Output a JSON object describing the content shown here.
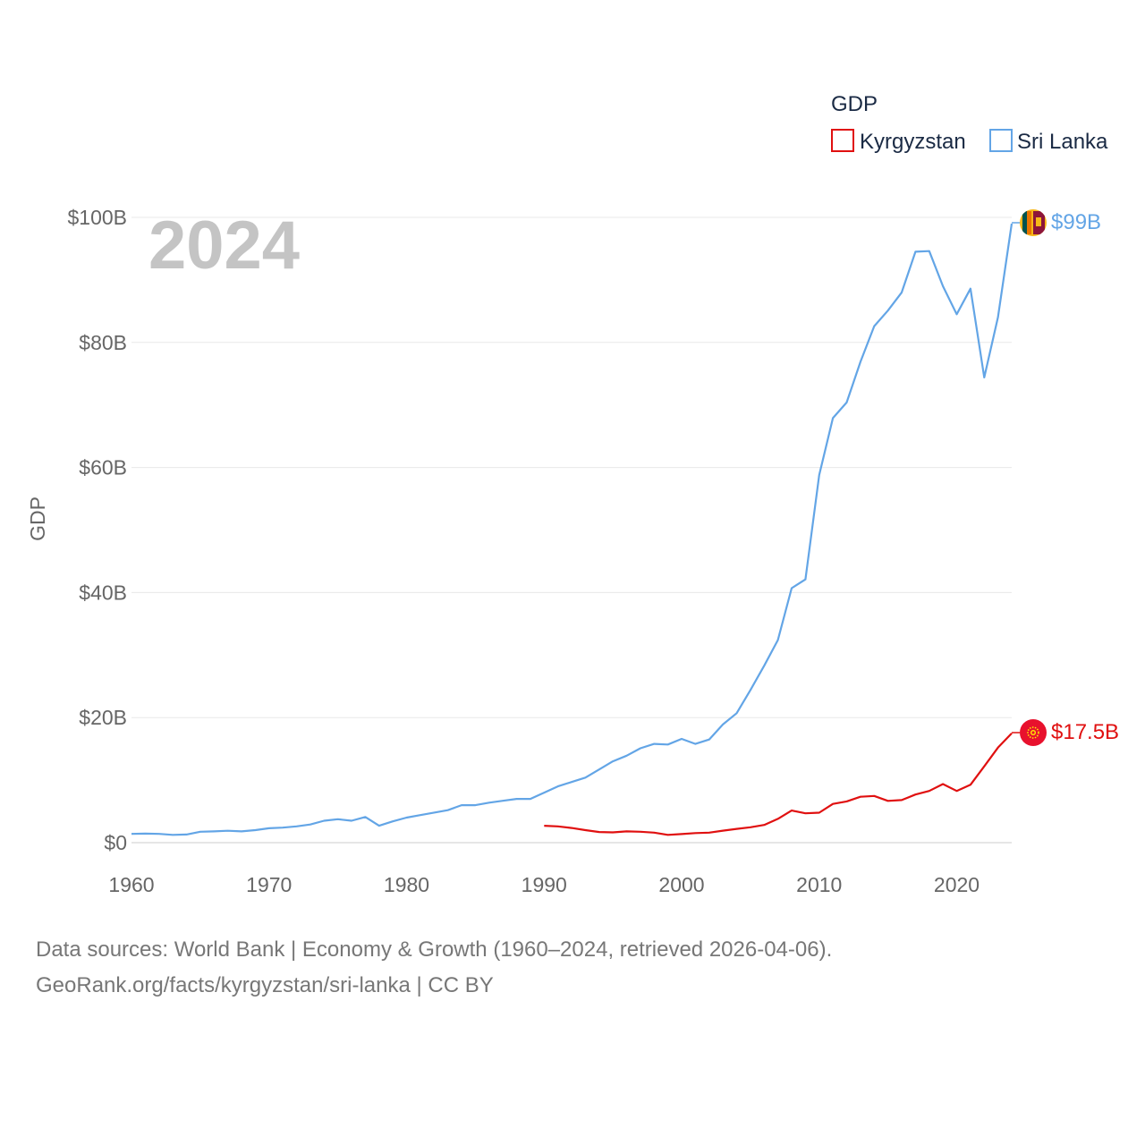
{
  "chart_data": {
    "type": "line",
    "year_label": "2024",
    "ylabel": "GDP",
    "xlim": [
      1960,
      2024
    ],
    "ylim": [
      0,
      100
    ],
    "x_ticks": [
      1960,
      1970,
      1980,
      1990,
      2000,
      2010,
      2020
    ],
    "x_tick_labels": [
      "1960",
      "1970",
      "1980",
      "1990",
      "2000",
      "2010",
      "2020"
    ],
    "y_ticks": [
      0,
      20,
      40,
      60,
      80,
      100
    ],
    "y_tick_labels": [
      "$0",
      "$20B",
      "$40B",
      "$60B",
      "$80B",
      "$100B"
    ],
    "legend": {
      "title": "GDP",
      "position": "top-right",
      "entries": [
        "Kyrgyzstan",
        "Sri Lanka"
      ]
    },
    "series": [
      {
        "name": "Sri Lanka",
        "color": "#63a5e6",
        "end_label": "$99B",
        "flag_icon": "sri-lanka-flag-icon",
        "points": [
          [
            1960,
            1.4
          ],
          [
            1961,
            1.45
          ],
          [
            1962,
            1.4
          ],
          [
            1963,
            1.25
          ],
          [
            1964,
            1.3
          ],
          [
            1965,
            1.75
          ],
          [
            1966,
            1.8
          ],
          [
            1967,
            1.9
          ],
          [
            1968,
            1.8
          ],
          [
            1969,
            2.0
          ],
          [
            1970,
            2.3
          ],
          [
            1971,
            2.4
          ],
          [
            1972,
            2.6
          ],
          [
            1973,
            2.9
          ],
          [
            1974,
            3.5
          ],
          [
            1975,
            3.75
          ],
          [
            1976,
            3.5
          ],
          [
            1977,
            4.1
          ],
          [
            1978,
            2.7
          ],
          [
            1979,
            3.4
          ],
          [
            1980,
            4.0
          ],
          [
            1981,
            4.4
          ],
          [
            1982,
            4.8
          ],
          [
            1983,
            5.2
          ],
          [
            1984,
            6.0
          ],
          [
            1985,
            6.0
          ],
          [
            1986,
            6.4
          ],
          [
            1987,
            6.7
          ],
          [
            1988,
            7.0
          ],
          [
            1989,
            7.0
          ],
          [
            1990,
            8.0
          ],
          [
            1991,
            9.0
          ],
          [
            1992,
            9.7
          ],
          [
            1993,
            10.4
          ],
          [
            1994,
            11.7
          ],
          [
            1995,
            13.0
          ],
          [
            1996,
            13.9
          ],
          [
            1997,
            15.1
          ],
          [
            1998,
            15.8
          ],
          [
            1999,
            15.7
          ],
          [
            2000,
            16.6
          ],
          [
            2001,
            15.8
          ],
          [
            2002,
            16.5
          ],
          [
            2003,
            18.9
          ],
          [
            2004,
            20.7
          ],
          [
            2005,
            24.4
          ],
          [
            2006,
            28.3
          ],
          [
            2007,
            32.4
          ],
          [
            2008,
            40.7
          ],
          [
            2009,
            42.1
          ],
          [
            2010,
            58.8
          ],
          [
            2011,
            67.9
          ],
          [
            2012,
            70.4
          ],
          [
            2013,
            76.9
          ],
          [
            2014,
            82.6
          ],
          [
            2015,
            85.1
          ],
          [
            2016,
            88.0
          ],
          [
            2017,
            94.5
          ],
          [
            2018,
            94.6
          ],
          [
            2019,
            89.0
          ],
          [
            2020,
            84.5
          ],
          [
            2021,
            88.6
          ],
          [
            2022,
            74.4
          ],
          [
            2023,
            84.0
          ],
          [
            2024,
            99.0
          ]
        ]
      },
      {
        "name": "Kyrgyzstan",
        "color": "#e01010",
        "end_label": "$17.5B",
        "flag_icon": "kyrgyzstan-flag-icon",
        "points": [
          [
            1990,
            2.7
          ],
          [
            1991,
            2.6
          ],
          [
            1992,
            2.35
          ],
          [
            1993,
            2.0
          ],
          [
            1994,
            1.7
          ],
          [
            1995,
            1.65
          ],
          [
            1996,
            1.8
          ],
          [
            1997,
            1.75
          ],
          [
            1998,
            1.6
          ],
          [
            1999,
            1.25
          ],
          [
            2000,
            1.37
          ],
          [
            2001,
            1.53
          ],
          [
            2002,
            1.6
          ],
          [
            2003,
            1.92
          ],
          [
            2004,
            2.2
          ],
          [
            2005,
            2.46
          ],
          [
            2006,
            2.83
          ],
          [
            2007,
            3.8
          ],
          [
            2008,
            5.14
          ],
          [
            2009,
            4.69
          ],
          [
            2010,
            4.79
          ],
          [
            2011,
            6.2
          ],
          [
            2012,
            6.6
          ],
          [
            2013,
            7.34
          ],
          [
            2014,
            7.47
          ],
          [
            2015,
            6.68
          ],
          [
            2016,
            6.81
          ],
          [
            2017,
            7.7
          ],
          [
            2018,
            8.27
          ],
          [
            2019,
            9.37
          ],
          [
            2020,
            8.27
          ],
          [
            2021,
            9.25
          ],
          [
            2022,
            12.2
          ],
          [
            2023,
            15.2
          ],
          [
            2024,
            17.5
          ]
        ]
      }
    ]
  },
  "footer": {
    "source_line": "Data sources: World Bank | Economy & Growth (1960–2024, retrieved 2026-04-06).",
    "credit_line": "GeoRank.org/facts/kyrgyzstan/sri-lanka | CC BY"
  }
}
